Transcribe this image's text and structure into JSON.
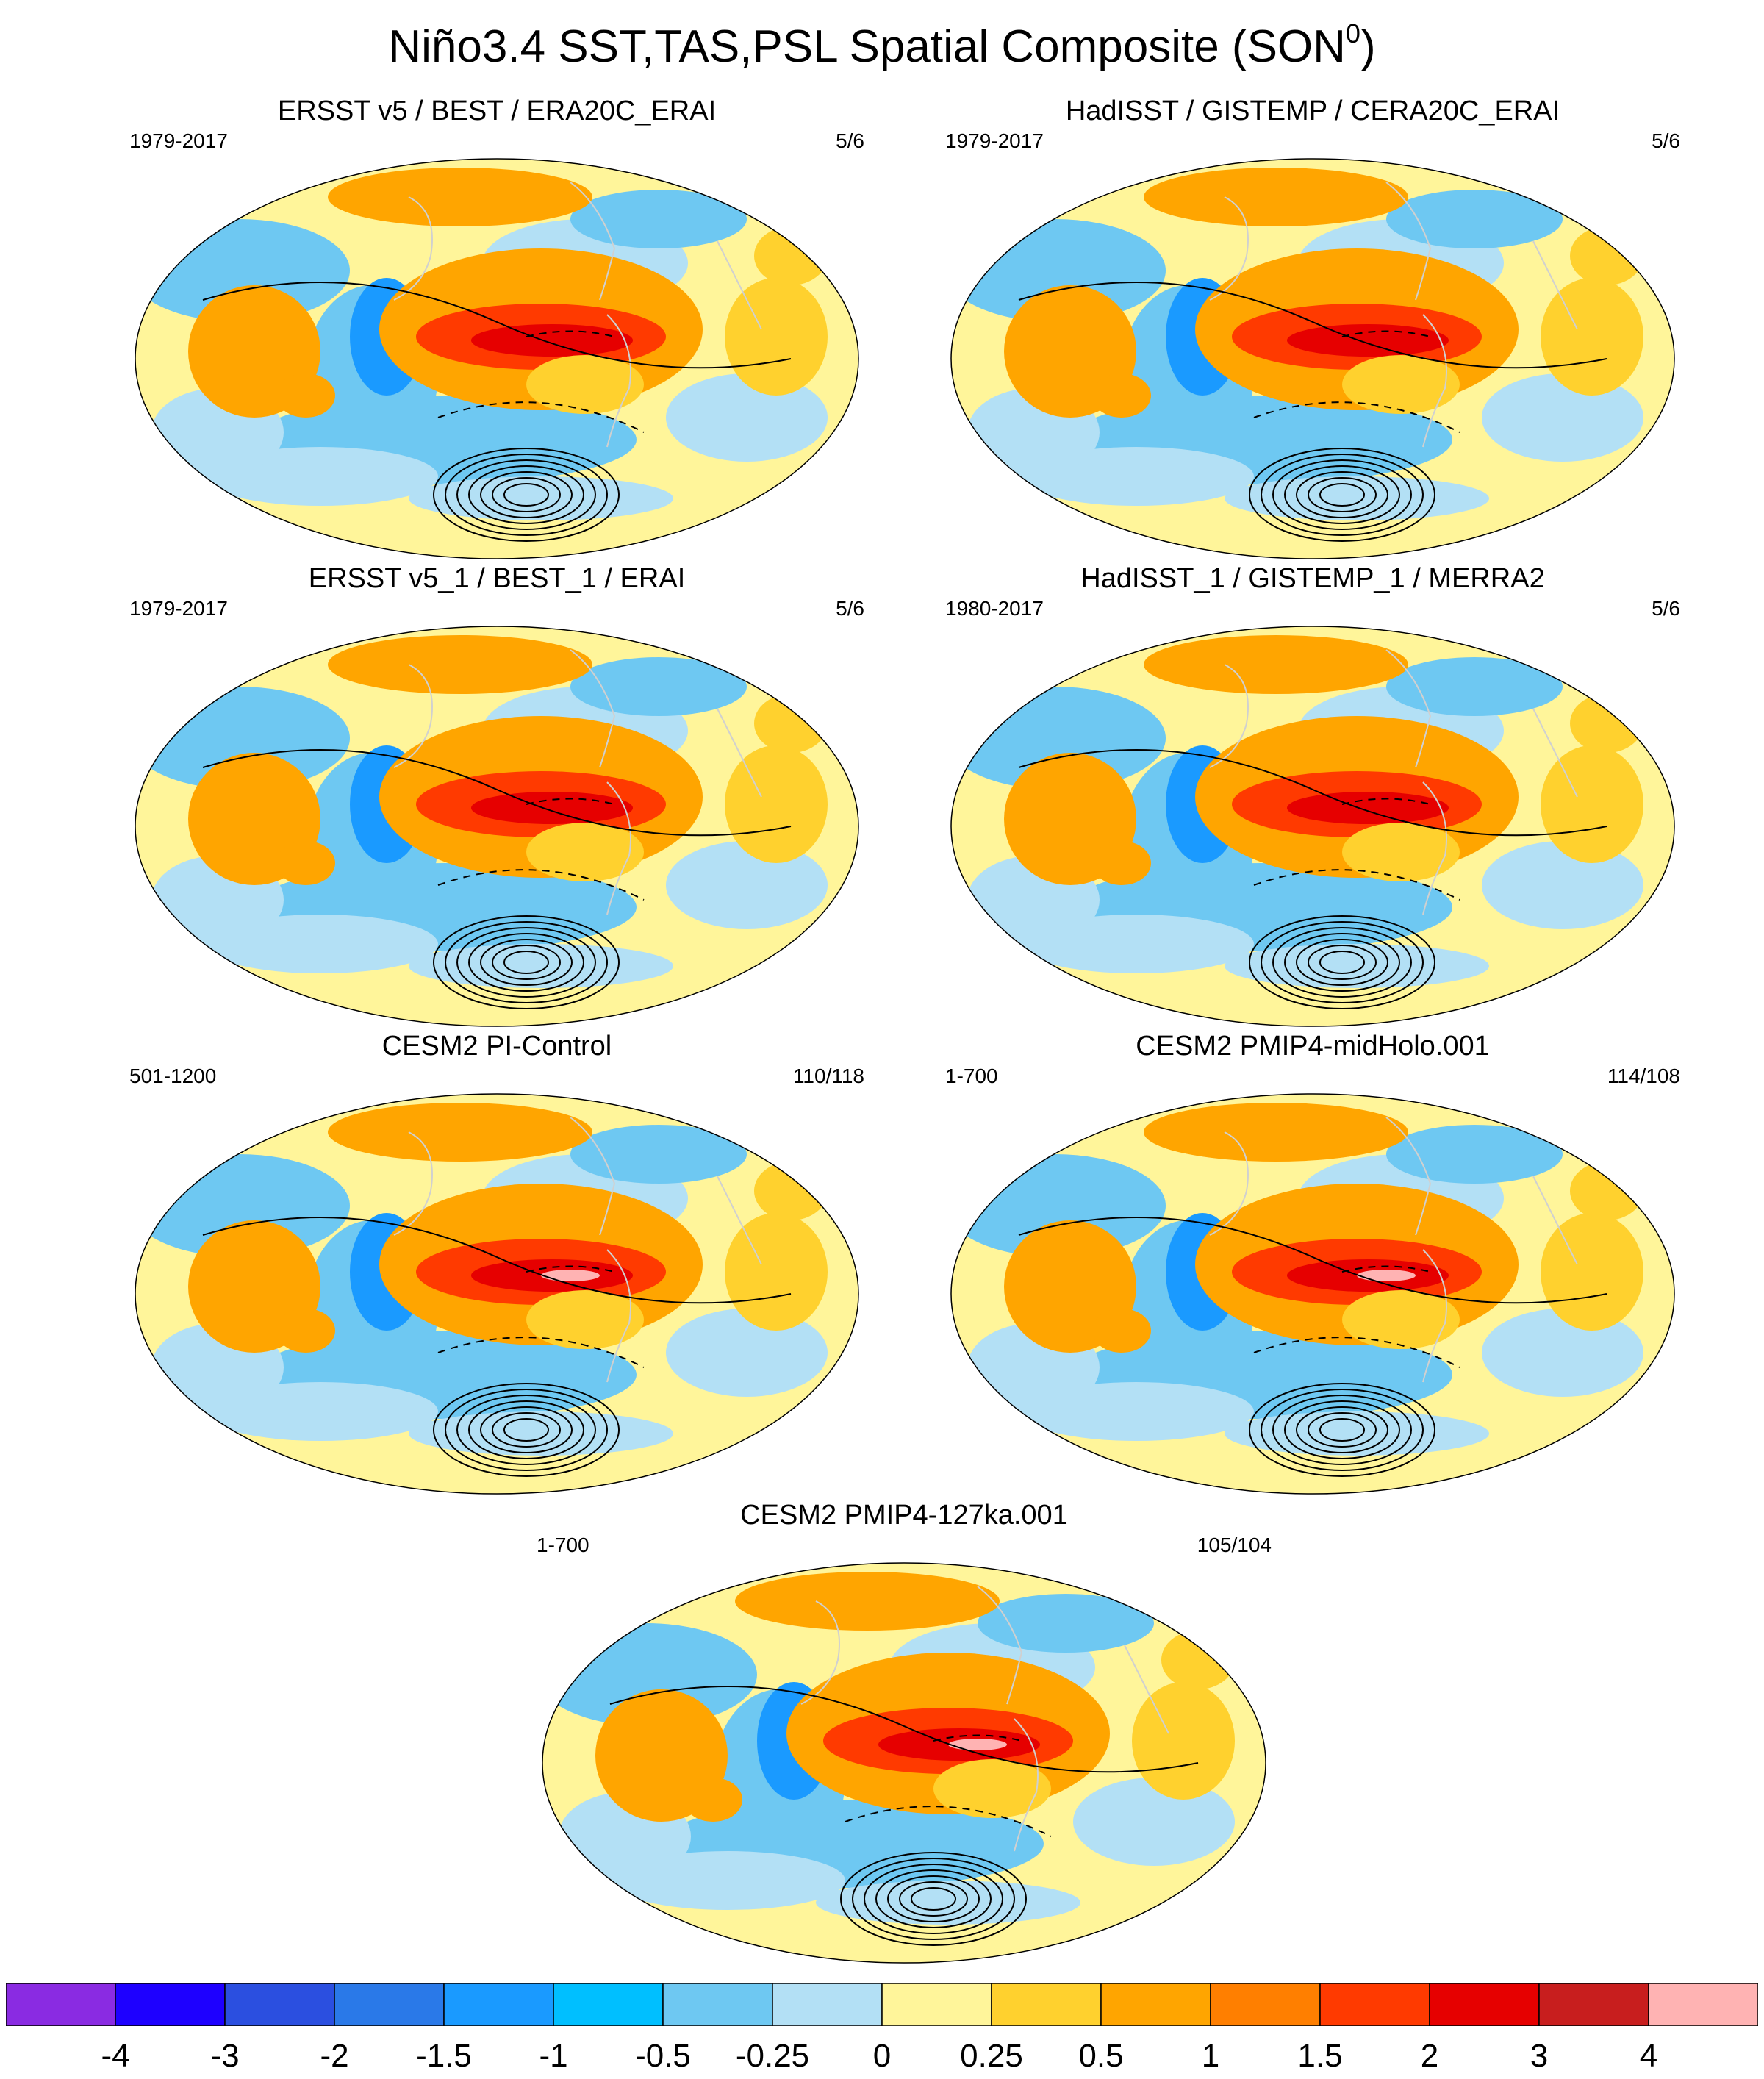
{
  "figure": {
    "title_main": "Niño3.4 SST,TAS,PSL Spatial Composite (SON",
    "title_sup": "0",
    "title_close": ")"
  },
  "panels": [
    {
      "title": "ERSST v5 / BEST / ERA20C_ERAI",
      "years": "1979-2017",
      "count": "5/6"
    },
    {
      "title": "HadISST / GISTEMP / CERA20C_ERAI",
      "years": "1979-2017",
      "count": "5/6"
    },
    {
      "title": "ERSST v5_1 / BEST_1 / ERAI",
      "years": "1979-2017",
      "count": "5/6"
    },
    {
      "title": "HadISST_1 / GISTEMP_1 / MERRA2",
      "years": "1980-2017",
      "count": "5/6"
    },
    {
      "title": "CESM2 PI-Control",
      "years": "501-1200",
      "count": "110/118"
    },
    {
      "title": "CESM2 PMIP4-midHolo.001",
      "years": "1-700",
      "count": "114/108"
    },
    {
      "title": "CESM2 PMIP4-127ka.001",
      "years": "1-700",
      "count": "105/104"
    }
  ],
  "colorbar": {
    "colors": [
      "#8a2be2",
      "#1e00ff",
      "#2b4fe0",
      "#2a79e8",
      "#1a9aff",
      "#00bfff",
      "#6ec8f2",
      "#b3e0f5",
      "#fff59a",
      "#ffd12e",
      "#ffa500",
      "#ff7f00",
      "#ff3a00",
      "#e60000",
      "#c81e1e",
      "#ffb3b3"
    ],
    "labels": [
      "-4",
      "-3",
      "-2",
      "-1.5",
      "-1",
      "-0.5",
      "-0.25",
      "0",
      "0.25",
      "0.5",
      "1",
      "1.5",
      "2",
      "3",
      "4"
    ]
  },
  "palette": {
    "background": "#fff59a",
    "pos_weak": "#ffd12e",
    "pos_mid": "#ffa500",
    "pos_strong": "#ff3a00",
    "pos_max": "#e60000",
    "pos_peak": "#ffb3b3",
    "neg_weak": "#b3e0f5",
    "neg_mid": "#6ec8f2",
    "neg_strong": "#1a9aff",
    "neg_max": "#2b4fe0",
    "contour": "#000000",
    "coast": "#d0d0d0"
  }
}
